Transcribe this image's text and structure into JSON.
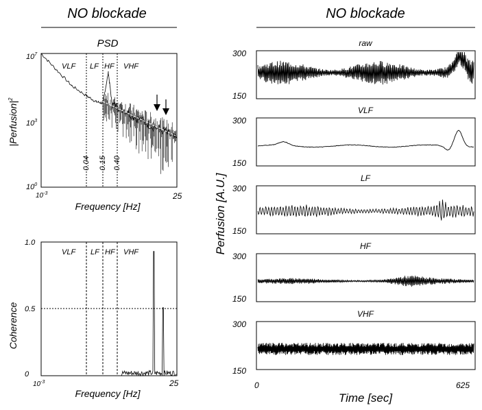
{
  "left_title": "NO blockade",
  "right_title": "NO blockade",
  "psd": {
    "title": "PSD",
    "ylabel": "|Perfusion|²",
    "ylabel_main": "|Perfusion|",
    "ylabel_sup": "2",
    "xlabel": "Frequency [Hz]",
    "x_min_label": "10-3",
    "x_min_base": "10",
    "x_min_exp": "-3",
    "x_max_label": "25",
    "y_ticks": [
      {
        "base": "10",
        "exp": "7"
      },
      {
        "base": "10",
        "exp": "3"
      },
      {
        "base": "10",
        "exp": "0"
      }
    ],
    "band_labels": [
      "VLF",
      "LF",
      "HF",
      "VHF"
    ],
    "boundary_labels": [
      "0.04",
      "0.15",
      "0.40"
    ]
  },
  "coherence": {
    "ylabel": "Coherence",
    "xlabel": "Frequency [Hz]",
    "x_min_base": "10",
    "x_min_exp": "-3",
    "x_max_label": "25",
    "y_ticks": [
      "1.0",
      "0.5",
      "0"
    ],
    "band_labels": [
      "VLF",
      "LF",
      "HF",
      "VHF"
    ]
  },
  "traces": {
    "ylabel": "Perfusion [A.U.]",
    "xlabel": "Time [sec]",
    "x_min_label": "0",
    "x_max_label": "625",
    "y_top": "300",
    "y_bottom": "150",
    "panels": [
      "raw",
      "VLF",
      "LF",
      "HF",
      "VHF"
    ]
  },
  "chart_data": [
    {
      "type": "line",
      "title": "PSD",
      "xlabel": "Frequency [Hz]",
      "ylabel": "|Perfusion|²",
      "xscale": "log",
      "yscale": "log",
      "xlim": [
        0.001,
        25
      ],
      "ylim": [
        1,
        10000000
      ],
      "band_boundaries_hz": [
        0.04,
        0.15,
        0.4
      ],
      "bands": [
        "VLF",
        "LF",
        "HF",
        "VHF"
      ],
      "series": [
        {
          "x": [
            0.001,
            0.003,
            0.01,
            0.03,
            0.06,
            0.1,
            0.15,
            0.2,
            0.4,
            1,
            3,
            10,
            25
          ],
          "y": [
            10000000,
            1500000,
            200000,
            60000,
            30000,
            25000,
            1000000,
            20000,
            15000,
            5000,
            2000,
            800,
            300
          ]
        }
      ],
      "annotations": [
        "two arrows near 5 Hz and 9 Hz"
      ]
    },
    {
      "type": "line",
      "xlabel": "Frequency [Hz]",
      "ylabel": "Coherence",
      "xscale": "log",
      "xlim": [
        0.001,
        25
      ],
      "ylim": [
        0,
        1.0
      ],
      "reference_line": 0.5,
      "bands": [
        "VLF",
        "LF",
        "HF",
        "VHF"
      ],
      "peaks": [
        {
          "x": 4.5,
          "y": 0.93
        },
        {
          "x": 9,
          "y": 0.51
        }
      ]
    },
    {
      "type": "line",
      "xlabel": "Time [sec]",
      "ylabel": "Perfusion [A.U.]",
      "xlim": [
        0,
        625
      ],
      "ylim": [
        150,
        300
      ],
      "panels": [
        "raw",
        "VLF",
        "LF",
        "HF",
        "VHF"
      ]
    }
  ]
}
